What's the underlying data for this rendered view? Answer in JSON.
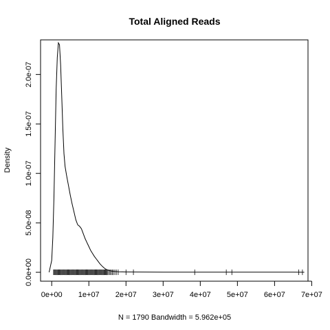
{
  "chart_data": {
    "type": "line",
    "title": "Total Aligned Reads",
    "xlabel": "N = 1790   Bandwidth = 5.962e+05",
    "ylabel": "Density",
    "xlim": [
      -3000000,
      69000000
    ],
    "ylim": [
      -9e-09,
      2.35e-07
    ],
    "x_ticks": [
      0,
      10000000,
      20000000,
      30000000,
      40000000,
      50000000,
      60000000,
      70000000
    ],
    "x_tick_labels": [
      "0e+00",
      "1e+07",
      "2e+07",
      "3e+07",
      "4e+07",
      "5e+07",
      "6e+07",
      "7e+07"
    ],
    "y_ticks": [
      0,
      5e-08,
      1e-07,
      1.5e-07,
      2e-07
    ],
    "y_tick_labels": [
      "0.0e+00",
      "5.0e-08",
      "1.0e-07",
      "1.5e-07",
      "2.0e-07"
    ],
    "series": [
      {
        "x": [
          -700000,
          0,
          300000,
          600000,
          900000,
          1200000,
          1500000,
          1800000,
          2100000,
          2400000,
          2700000,
          3000000,
          3300000,
          3600000,
          4000000,
          4500000,
          5000000,
          5500000,
          6000000,
          6500000,
          7000000,
          7500000,
          8000000,
          8500000,
          9000000,
          9500000,
          10000000,
          10500000,
          11000000,
          11500000,
          12000000,
          12500000,
          13000000,
          13500000,
          14000000,
          14500000,
          15000000,
          15500000,
          16000000,
          16500000,
          17000000,
          18000000,
          20000000,
          25000000,
          30000000,
          35000000,
          40000000,
          45000000,
          50000000,
          55000000,
          60000000,
          65000000,
          68000000
        ],
        "y": [
          0,
          1.2e-08,
          3.5e-08,
          7.5e-08,
          1.3e-07,
          1.85e-07,
          2.17e-07,
          2.32e-07,
          2.3e-07,
          2.1e-07,
          1.78e-07,
          1.45e-07,
          1.2e-07,
          1.07e-07,
          9.8e-08,
          8.8e-08,
          7.8e-08,
          6.9e-08,
          6.1e-08,
          5.3e-08,
          4.8e-08,
          4.65e-08,
          4.4e-08,
          3.9e-08,
          3.4e-08,
          3e-08,
          2.6e-08,
          2.2e-08,
          1.9e-08,
          1.6e-08,
          1.35e-08,
          1.1e-08,
          8.5e-09,
          6.5e-09,
          4.7e-09,
          3.3e-09,
          2.4e-09,
          1.7e-09,
          1.3e-09,
          1e-09,
          8e-10,
          5e-10,
          3e-10,
          2e-10,
          1e-10,
          1e-10,
          1e-10,
          1e-10,
          1e-10,
          1e-10,
          1e-10,
          1e-10,
          0
        ]
      }
    ],
    "rug_x": [
      500000,
      700000,
      900000,
      1100000,
      1300000,
      1500000,
      1700000,
      1900000,
      2100000,
      2300000,
      2500000,
      2700000,
      2900000,
      3100000,
      3300000,
      3500000,
      3700000,
      3900000,
      4100000,
      4300000,
      4500000,
      4700000,
      4900000,
      5100000,
      5300000,
      5500000,
      5700000,
      5900000,
      6100000,
      6300000,
      6500000,
      6700000,
      6900000,
      7100000,
      7300000,
      7500000,
      7700000,
      7900000,
      8100000,
      8300000,
      8500000,
      8700000,
      8900000,
      9100000,
      9300000,
      9500000,
      9700000,
      9900000,
      10100000,
      10300000,
      10500000,
      10700000,
      10900000,
      11100000,
      11300000,
      11500000,
      11700000,
      11900000,
      12100000,
      12300000,
      12500000,
      12700000,
      12900000,
      13100000,
      13300000,
      13500000,
      13700000,
      13900000,
      14100000,
      14300000,
      14500000,
      14700000,
      14900000,
      15100000,
      15400000,
      15700000,
      16000000,
      16300000,
      16600000,
      17000000,
      17400000,
      17900000,
      20000000,
      22000000,
      38500000,
      47000000,
      48500000,
      66500000,
      67500000
    ],
    "grid": false,
    "legend": "none"
  }
}
